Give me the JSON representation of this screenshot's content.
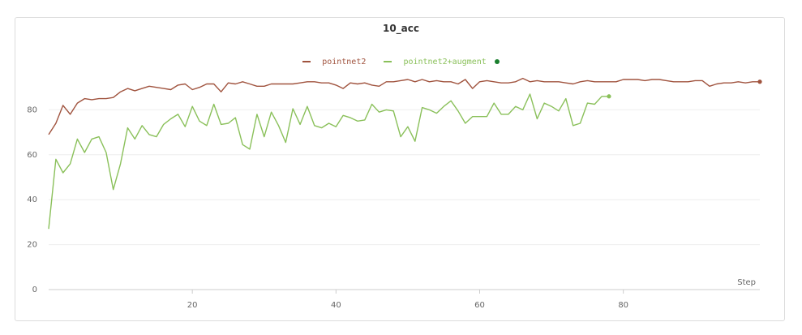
{
  "chart_data": {
    "type": "line",
    "title": "10_acc",
    "xlabel": "Step",
    "ylabel": "",
    "xlim": [
      0,
      99
    ],
    "ylim": [
      0,
      100
    ],
    "xticks": [
      20,
      40,
      60,
      80
    ],
    "yticks": [
      0,
      20,
      40,
      60,
      80
    ],
    "grid": true,
    "legend_position": "top-center",
    "series": [
      {
        "name": "pointnet2",
        "color": "#a0533e",
        "x": [
          0,
          1,
          2,
          3,
          4,
          5,
          6,
          7,
          8,
          9,
          10,
          11,
          12,
          13,
          14,
          15,
          16,
          17,
          18,
          19,
          20,
          21,
          22,
          23,
          24,
          25,
          26,
          27,
          28,
          29,
          30,
          31,
          32,
          33,
          34,
          35,
          36,
          37,
          38,
          39,
          40,
          41,
          42,
          43,
          44,
          45,
          46,
          47,
          48,
          49,
          50,
          51,
          52,
          53,
          54,
          55,
          56,
          57,
          58,
          59,
          60,
          61,
          62,
          63,
          64,
          65,
          66,
          67,
          68,
          69,
          70,
          71,
          72,
          73,
          74,
          75,
          76,
          77,
          78,
          79,
          80,
          81,
          82,
          83,
          84,
          85,
          86,
          87,
          88,
          89,
          90,
          91,
          92,
          93,
          94,
          95,
          96,
          97,
          98,
          99
        ],
        "values": [
          69,
          74,
          82,
          78,
          83,
          85,
          84.5,
          85,
          85,
          85.5,
          88,
          89.5,
          88.5,
          89.5,
          90.5,
          90,
          89.5,
          89,
          91,
          91.5,
          89,
          90,
          91.5,
          91.5,
          88,
          92,
          91.5,
          92.5,
          91.5,
          90.5,
          90.5,
          91.5,
          91.5,
          91.5,
          91.5,
          92,
          92.5,
          92.5,
          92,
          92,
          91,
          89.5,
          92,
          91.5,
          92,
          91,
          90.5,
          92.5,
          92.5,
          93,
          93.5,
          92.5,
          93.5,
          92.5,
          93,
          92.5,
          92.5,
          91.5,
          93.5,
          89.5,
          92.5,
          93,
          92.5,
          92,
          92,
          92.5,
          94,
          92.5,
          93,
          92.5,
          92.5,
          92.5,
          92,
          91.5,
          92.5,
          93,
          92.5,
          92.5,
          92.5,
          92.5,
          93.5,
          93.5,
          93.5,
          93,
          93.5,
          93.5,
          93,
          92.5,
          92.5,
          92.5,
          93,
          93,
          90.5,
          91.5,
          92,
          92,
          92.5,
          92,
          92.5,
          92.5
        ]
      },
      {
        "name": "pointnet2+augment",
        "color": "#8ac05a",
        "x": [
          0,
          1,
          2,
          3,
          4,
          5,
          6,
          7,
          8,
          9,
          10,
          11,
          12,
          13,
          14,
          15,
          16,
          17,
          18,
          19,
          20,
          21,
          22,
          23,
          24,
          25,
          26,
          27,
          28,
          29,
          30,
          31,
          32,
          33,
          34,
          35,
          36,
          37,
          38,
          39,
          40,
          41,
          42,
          43,
          44,
          45,
          46,
          47,
          48,
          49,
          50,
          51,
          52,
          53,
          54,
          55,
          56,
          57,
          58,
          59,
          60,
          61,
          62,
          63,
          64,
          65,
          66,
          67,
          68,
          69,
          70,
          71,
          72,
          73,
          74,
          75,
          76,
          77,
          78
        ],
        "values": [
          27,
          58,
          52,
          56,
          67,
          61,
          67,
          68,
          61,
          44.5,
          56,
          72,
          67,
          73,
          69,
          68,
          73.5,
          76,
          78,
          72.5,
          81.5,
          75,
          73,
          82.5,
          73.5,
          74,
          76.5,
          64.5,
          62.5,
          78,
          68,
          79,
          73,
          65.5,
          80.5,
          73.5,
          81.5,
          73,
          72,
          74,
          72.5,
          77.5,
          76.5,
          75,
          75.5,
          82.5,
          79,
          80,
          79.5,
          68,
          72.5,
          66,
          81,
          80,
          78.5,
          81.5,
          84,
          79.5,
          74,
          77,
          77,
          77,
          83,
          78,
          78,
          81.5,
          80,
          87,
          76,
          83,
          81.5,
          79.5,
          85,
          73,
          74,
          83,
          82.5,
          86,
          86
        ]
      }
    ]
  }
}
